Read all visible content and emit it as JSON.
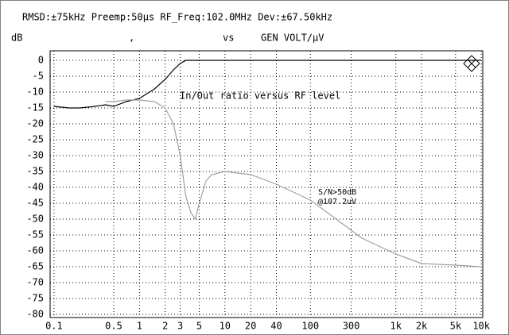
{
  "chart_data": {
    "type": "line",
    "title": "RMSD:±75kHz Preemp:50µs RF_Freq:102.0MHz Dev:±67.50kHz",
    "y_label": "dB",
    "x_label_prefix": ",",
    "x_label_vs": "vs",
    "x_label": "GEN VOLT/µV",
    "annotation": "@107.2uV",
    "log_x": true,
    "grid": true,
    "xlim": [
      0.09,
      10400
    ],
    "ylim": [
      -81,
      3
    ],
    "xticks": [
      0.1,
      0.5,
      1,
      2,
      3,
      5,
      10,
      20,
      40,
      100,
      300,
      {
        "value": 1000,
        "label": "1k"
      },
      {
        "value": 2000,
        "label": "2k"
      },
      {
        "value": 5000,
        "label": "5k"
      },
      {
        "value": 10000,
        "label": "10k"
      }
    ],
    "yticks": [
      0,
      -5,
      -10,
      -15,
      -20,
      -25,
      -30,
      -35,
      -40,
      -45,
      -50,
      -55,
      -60,
      -65,
      -70,
      -75,
      -80
    ],
    "x": [
      0.1,
      0.15,
      0.2,
      0.3,
      0.4,
      0.5,
      0.7,
      1,
      1.5,
      2,
      2.5,
      3,
      3.5,
      4,
      4.5,
      5,
      6,
      7,
      10,
      20,
      40,
      100,
      200,
      400,
      1000,
      2000,
      5000,
      10000
    ],
    "series": [
      {
        "name": "In/Out ratio versus RF level",
        "color": "#000000",
        "values": [
          -14.5,
          -15,
          -15,
          -14.5,
          -14,
          -14.5,
          -13,
          -12,
          -9,
          -6,
          -3,
          -1,
          0,
          0,
          0,
          0,
          0,
          0,
          0,
          0,
          0,
          0,
          0,
          0,
          0,
          0,
          0,
          0
        ]
      },
      {
        "name": "S/N>50dB",
        "color": "#a0a0a0",
        "values": [
          null,
          null,
          null,
          null,
          -13,
          -13,
          -12.5,
          -12.5,
          -13,
          -15,
          -20,
          -30,
          -43,
          -48,
          -50,
          -45,
          -38,
          -36,
          -35,
          -36,
          -39,
          -44,
          -50,
          -56,
          -61,
          -64,
          -64.5,
          -65
        ]
      }
    ]
  }
}
